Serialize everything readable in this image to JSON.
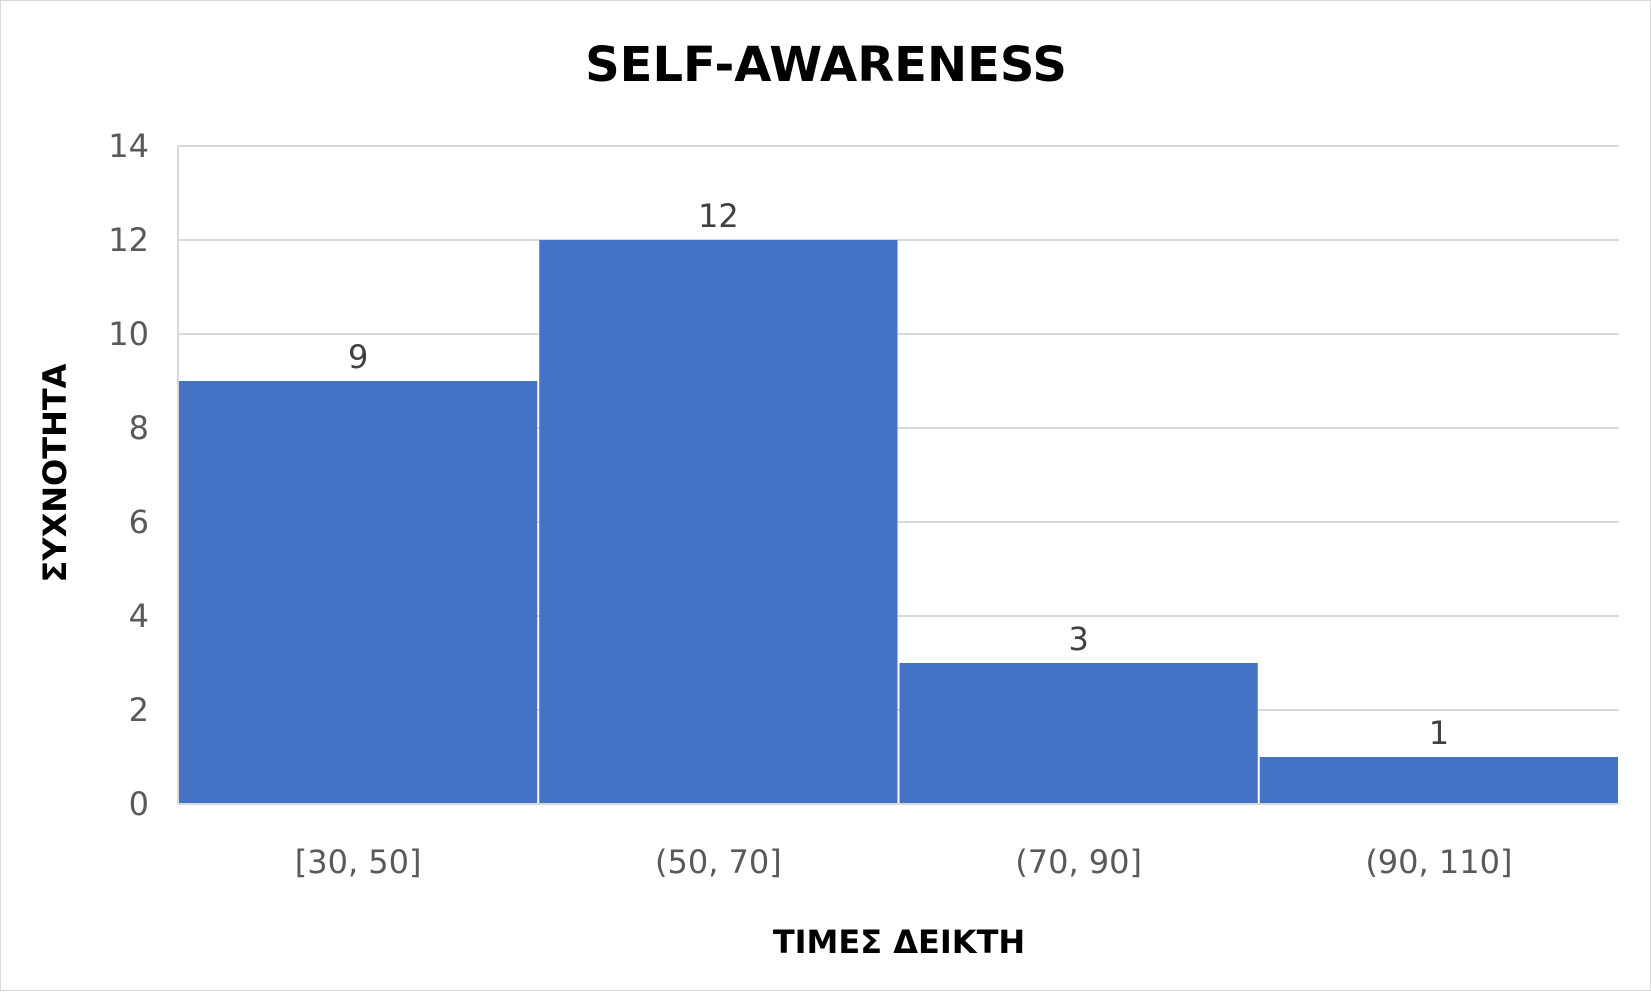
{
  "chart_data": {
    "type": "bar",
    "title": "SELF-AWARENESS",
    "xlabel": "ΤΙΜΕΣ ΔΕΙΚΤΗ",
    "ylabel": "ΣΥΧΝΟΤΗΤΑ",
    "categories": [
      "[30, 50]",
      "(50, 70]",
      "(70, 90]",
      "(90, 110]"
    ],
    "values": [
      9,
      12,
      3,
      1
    ],
    "data_labels": [
      "9",
      "12",
      "3",
      "1"
    ],
    "ylim": [
      0,
      14
    ],
    "yticks": [
      0,
      2,
      4,
      6,
      8,
      10,
      12,
      14
    ],
    "grid": true,
    "legend": "none",
    "bar_color": "#4472C4"
  }
}
